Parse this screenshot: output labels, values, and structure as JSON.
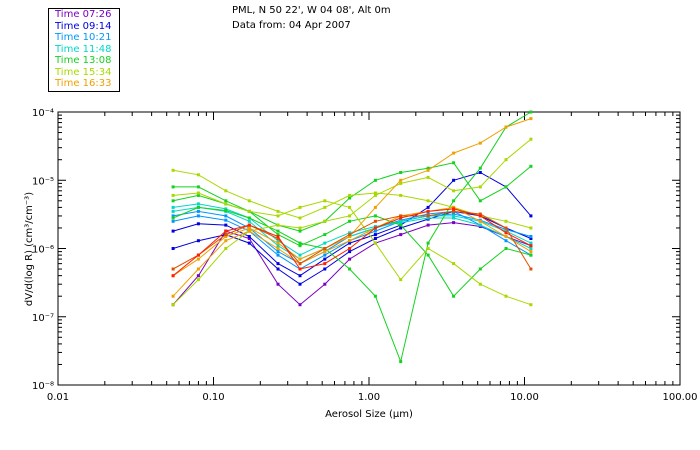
{
  "header": {
    "line1": "PML, N 50 22', W 04 08', Alt 0m",
    "line2": "Data from: 04 Apr 2007"
  },
  "legend": [
    {
      "label": "Time 07:26",
      "color": "#7a00c4"
    },
    {
      "label": "Time 09:14",
      "color": "#0000e0"
    },
    {
      "label": "Time 10:21",
      "color": "#0096ff"
    },
    {
      "label": "Time 11:48",
      "color": "#00d8c8"
    },
    {
      "label": "Time 13:08",
      "color": "#14d21e"
    },
    {
      "label": "Time 15:34",
      "color": "#a8d800"
    },
    {
      "label": "Time 16:33",
      "color": "#f0a000"
    }
  ],
  "chart_data": {
    "type": "line",
    "title": "",
    "xlabel": "Aerosol Size (µm)",
    "ylabel": "dV/d(log R) (cm³/cm⁻³)",
    "xscale": "log",
    "yscale": "log",
    "xlim": [
      0.01,
      100
    ],
    "ylim": [
      1e-08,
      0.0001
    ],
    "x_ticks": [
      {
        "value": 0.01,
        "label": "0.01"
      },
      {
        "value": 0.1,
        "label": "0.10"
      },
      {
        "value": 1,
        "label": "1.00"
      },
      {
        "value": 10,
        "label": "10.00"
      },
      {
        "value": 100,
        "label": "100.00"
      }
    ],
    "y_ticks": [
      {
        "value": 1e-08,
        "label": "10⁻⁸"
      },
      {
        "value": 1e-07,
        "label": "10⁻⁷"
      },
      {
        "value": 1e-06,
        "label": "10⁻⁶"
      },
      {
        "value": 1e-05,
        "label": "10⁻⁵"
      },
      {
        "value": 0.0001,
        "label": "10⁻⁴"
      }
    ],
    "x": [
      0.055,
      0.08,
      0.12,
      0.17,
      0.26,
      0.36,
      0.52,
      0.75,
      1.1,
      1.6,
      2.4,
      3.5,
      5.2,
      7.6,
      11
    ],
    "series": [
      {
        "name": "Time 07:26",
        "color": "#7a00c4",
        "values": [
          1.5e-07,
          4e-07,
          1.8e-06,
          1.4e-06,
          3e-07,
          1.5e-07,
          3e-07,
          7e-07,
          1.2e-06,
          1.6e-06,
          2.2e-06,
          2.4e-06,
          2.1e-06,
          1.5e-06,
          1.1e-06
        ]
      },
      {
        "name": "Time 09:14",
        "color": "#0000e0",
        "values": [
          1e-06,
          1.3e-06,
          1.6e-06,
          1.2e-06,
          5e-07,
          3e-07,
          5e-07,
          9e-07,
          1.4e-06,
          2e-06,
          2.7e-06,
          3.5e-06,
          3e-06,
          2e-06,
          1.4e-06
        ]
      },
      {
        "name": "Time 09:14",
        "color": "#0000e0",
        "values": [
          1.8e-06,
          2.3e-06,
          2.2e-06,
          1.5e-06,
          6e-07,
          4e-07,
          7e-07,
          1.2e-06,
          1.6e-06,
          2.2e-06,
          4e-06,
          1e-05,
          1.3e-05,
          8e-06,
          3e-06
        ]
      },
      {
        "name": "Time 10:21",
        "color": "#0096ff",
        "values": [
          2.5e-06,
          3e-06,
          2.6e-06,
          1.8e-06,
          8e-07,
          5e-07,
          8e-07,
          1.3e-06,
          1.8e-06,
          2.5e-06,
          3e-06,
          3.2e-06,
          2.6e-06,
          1.9e-06,
          1.5e-06
        ]
      },
      {
        "name": "Time 10:21",
        "color": "#0096ff",
        "values": [
          3e-06,
          3.5e-06,
          3e-06,
          2e-06,
          9e-07,
          6e-07,
          9e-07,
          1.5e-06,
          2e-06,
          2.6e-06,
          3.2e-06,
          3.5e-06,
          2.2e-06,
          1.3e-06,
          8e-07
        ]
      },
      {
        "name": "Time 11:48",
        "color": "#00d8c8",
        "values": [
          3.5e-06,
          4e-06,
          3.5e-06,
          2.5e-06,
          1.1e-06,
          7e-07,
          1e-06,
          1.5e-06,
          2e-06,
          2.5e-06,
          3e-06,
          3e-06,
          2.5e-06,
          1.8e-06,
          1.2e-06
        ]
      },
      {
        "name": "Time 11:48",
        "color": "#00d8c8",
        "values": [
          4e-06,
          4.5e-06,
          3.8e-06,
          2.8e-06,
          1.3e-06,
          8e-07,
          1.2e-06,
          1.7e-06,
          2.1e-06,
          2.4e-06,
          2.8e-06,
          2.8e-06,
          2.2e-06,
          1.5e-06,
          1e-06
        ]
      },
      {
        "name": "Time 13:08",
        "color": "#14d21e",
        "values": [
          8e-06,
          8e-06,
          5e-06,
          3.5e-06,
          1.6e-06,
          1.1e-06,
          1.6e-06,
          2.5e-06,
          3e-06,
          2.2e-06,
          8e-07,
          2e-07,
          5e-07,
          1e-06,
          8e-07
        ]
      },
      {
        "name": "Time 13:08",
        "color": "#14d21e",
        "values": [
          5e-06,
          6e-06,
          4.5e-06,
          3.5e-06,
          2.2e-06,
          1.8e-06,
          2.5e-06,
          5.5e-06,
          1e-05,
          1.3e-05,
          1.5e-05,
          1.8e-05,
          5e-06,
          8e-06,
          1.6e-05
        ]
      },
      {
        "name": "Time 13:08",
        "color": "#14d21e",
        "values": [
          2.8e-06,
          4e-06,
          3.6e-06,
          2.8e-06,
          1.8e-06,
          1.2e-06,
          1e-06,
          5e-07,
          2e-07,
          2.2e-08,
          1.2e-06,
          5e-06,
          1.5e-05,
          6e-05,
          0.0001
        ]
      },
      {
        "name": "Time 15:34",
        "color": "#a8d800",
        "values": [
          1.4e-05,
          1.2e-05,
          7e-06,
          5e-06,
          3.5e-06,
          2.8e-06,
          4e-06,
          6e-06,
          6.5e-06,
          6e-06,
          5e-06,
          4e-06,
          3e-06,
          2.5e-06,
          2e-06
        ]
      },
      {
        "name": "Time 15:34",
        "color": "#a8d800",
        "values": [
          6e-06,
          6.5e-06,
          4.5e-06,
          3.5e-06,
          3e-06,
          4e-06,
          5e-06,
          4e-06,
          1.2e-06,
          3.5e-07,
          1e-06,
          6e-07,
          3e-07,
          2e-07,
          1.5e-07
        ]
      },
      {
        "name": "Time 15:34",
        "color": "#a8d800",
        "values": [
          1.5e-07,
          3.5e-07,
          1e-06,
          1.8e-06,
          2.2e-06,
          2e-06,
          2.5e-06,
          3e-06,
          6e-06,
          9e-06,
          1.1e-05,
          7e-06,
          8e-06,
          2e-05,
          4e-05
        ]
      },
      {
        "name": "Time 16:33",
        "color": "#f0a000",
        "values": [
          4e-07,
          7e-07,
          1.5e-06,
          2e-06,
          1.2e-06,
          7e-07,
          1e-06,
          1.5e-06,
          4e-06,
          1e-05,
          1.4e-05,
          2.5e-05,
          3.5e-05,
          6e-05,
          8e-05
        ]
      },
      {
        "name": "Time 16:33",
        "color": "#f0a000",
        "values": [
          2e-07,
          5e-07,
          1.3e-06,
          1.8e-06,
          1e-06,
          6e-07,
          9e-07,
          1.3e-06,
          2e-06,
          3e-06,
          3.5e-06,
          4e-06,
          2.5e-06,
          1.5e-06,
          9e-07
        ]
      },
      {
        "name": "Time 16:33",
        "color": "#e05000",
        "values": [
          5e-07,
          8e-07,
          1.6e-06,
          2.2e-06,
          1.4e-06,
          6e-07,
          1e-06,
          1.6e-06,
          2.5e-06,
          3e-06,
          3e-06,
          3.5e-06,
          3.2e-06,
          2e-06,
          5e-07
        ]
      },
      {
        "name": "Time 16:33",
        "color": "#ff2000",
        "values": [
          4e-07,
          8e-07,
          1.8e-06,
          2.2e-06,
          1.5e-06,
          5e-07,
          6e-07,
          1e-06,
          2e-06,
          2.8e-06,
          3.5e-06,
          3.8e-06,
          3e-06,
          1.7e-06,
          1.1e-06
        ]
      }
    ]
  }
}
